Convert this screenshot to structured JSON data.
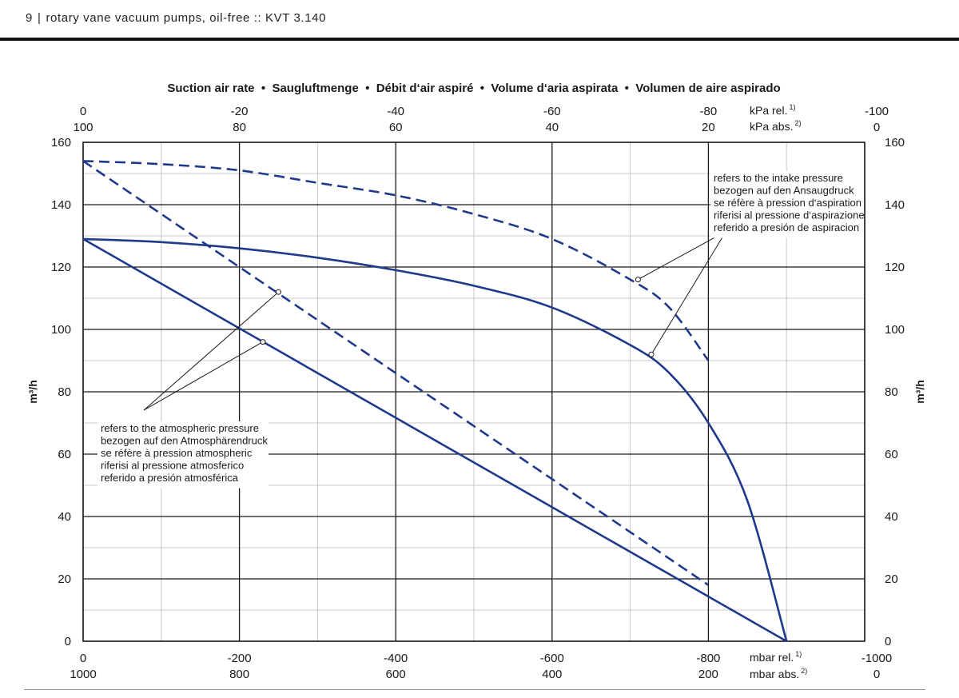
{
  "header": {
    "page_number": "9",
    "separator": "|",
    "title": "rotary vane vacuum pumps, oil-free :: KVT 3.140"
  },
  "chart_data": {
    "type": "line",
    "title": "Suction air rate  •  Saugluftmenge  •  Débit d‘air aspiré  •  Volume d‘aria aspirata  •  Volumen de aire aspirado",
    "ylabel": "m³/h",
    "ylim": [
      0,
      160
    ],
    "xlim": [
      0,
      -1000
    ],
    "grid": true,
    "y_ticks": [
      "0",
      "20",
      "40",
      "60",
      "80",
      "100",
      "120",
      "140",
      "160"
    ],
    "x_bottom_rel": {
      "ticks": [
        0,
        -200,
        -400,
        -600,
        -800,
        -1000
      ],
      "labels": [
        "0",
        "-200",
        "-400",
        "-600",
        "-800",
        "-1000"
      ],
      "unit": "mbar rel.",
      "footnote": "1)"
    },
    "x_bottom_abs": {
      "ticks": [
        0,
        -200,
        -400,
        -600,
        -800,
        -1000
      ],
      "labels": [
        "1000",
        "800",
        "600",
        "400",
        "200",
        "0"
      ],
      "unit": "mbar abs.",
      "footnote": "2)"
    },
    "x_top_rel": {
      "ticks": [
        0,
        -200,
        -400,
        -600,
        -800,
        -1000
      ],
      "labels": [
        "0",
        "-20",
        "-40",
        "-60",
        "-80",
        "-100"
      ],
      "unit": "kPa rel.",
      "footnote": "1)"
    },
    "x_top_abs": {
      "ticks": [
        0,
        -200,
        -400,
        -600,
        -800,
        -1000
      ],
      "labels": [
        "100",
        "80",
        "60",
        "40",
        "20",
        "0"
      ],
      "unit": "kPa abs.",
      "footnote": "2)"
    },
    "series": [
      {
        "style": "solid",
        "color": "#1f3a8a",
        "x": [
          0,
          -100,
          -200,
          -300,
          -400,
          -500,
          -600,
          -700,
          -750,
          -800,
          -850,
          -900
        ],
        "y": [
          129,
          128,
          126,
          123,
          119,
          114,
          107,
          95,
          86,
          70,
          45,
          0
        ]
      },
      {
        "style": "solid",
        "color": "#1f3a8a",
        "x": [
          0,
          -900
        ],
        "y": [
          129,
          0
        ]
      },
      {
        "style": "dashed",
        "color": "#1f3a8a",
        "x": [
          0,
          -100,
          -200,
          -300,
          -400,
          -500,
          -600,
          -700,
          -750,
          -800
        ],
        "y": [
          154,
          153,
          151,
          147,
          143,
          137,
          129,
          116,
          107,
          90
        ]
      },
      {
        "style": "dashed",
        "color": "#1f3a8a",
        "x": [
          0,
          -800
        ],
        "y": [
          154,
          18
        ]
      }
    ],
    "annotations": {
      "intake": {
        "lines": [
          "refers to the intake pressure",
          "bezogen auf den Ansaugdruck",
          "se réfère à pression d‘aspiration",
          "riferisi al pressione d‘aspirazione",
          "referido a presión de aspiracion"
        ]
      },
      "atmospheric": {
        "lines": [
          "refers to the atmospheric pressure",
          "bezogen auf den Atmosphärendruck",
          "se réfère à pression atmospheric",
          "riferisi al pressione atmosferico",
          "referido a presión atmosférica"
        ]
      }
    }
  }
}
